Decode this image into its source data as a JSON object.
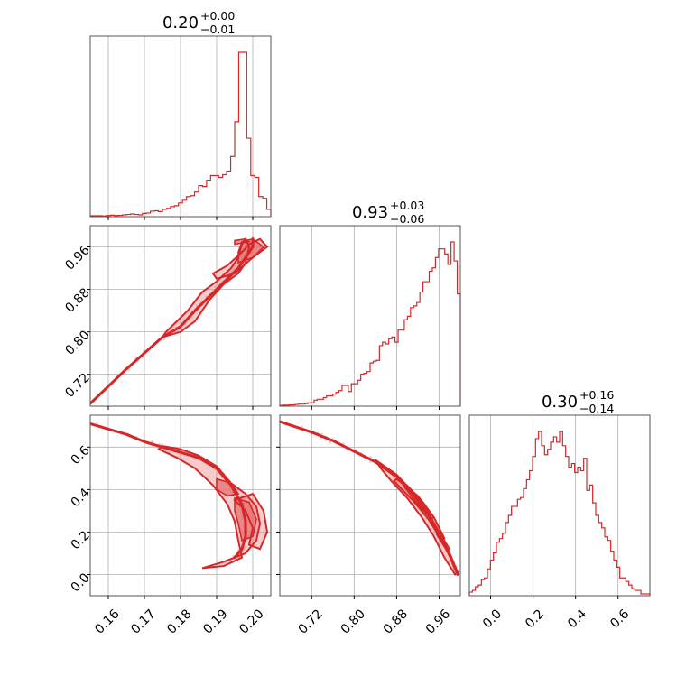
{
  "colors": {
    "series": "#d62728",
    "scatter": "#f2a3a3",
    "fill": "#e66a6b",
    "grid": "#b0b0b0",
    "frame": "#555555"
  },
  "chart_data": {
    "type": "corner",
    "titles": [
      {
        "value": "0.20",
        "plus": "+0.00",
        "minus": "−0.01"
      },
      {
        "value": "0.93",
        "plus": "+0.03",
        "minus": "−0.06"
      },
      {
        "value": "0.30",
        "plus": "+0.16",
        "minus": "−0.14"
      }
    ],
    "params": [
      {
        "range": [
          0.155,
          0.205
        ],
        "ticks": [
          0.16,
          0.17,
          0.18,
          0.19,
          0.2
        ],
        "tick_labels": [
          "0.16",
          "0.17",
          "0.18",
          "0.19",
          "0.20"
        ]
      },
      {
        "range": [
          0.66,
          1.0
        ],
        "ticks": [
          0.72,
          0.8,
          0.88,
          0.96
        ],
        "tick_labels": [
          "0.72",
          "0.80",
          "0.88",
          "0.96"
        ]
      },
      {
        "range": [
          -0.1,
          0.75
        ],
        "ticks": [
          0.0,
          0.2,
          0.4,
          0.6
        ],
        "tick_labels": [
          "0.0",
          "0.2",
          "0.4",
          "0.6"
        ]
      }
    ],
    "grid": true,
    "histograms": [
      {
        "bin_range": [
          0.155,
          0.205
        ],
        "counts": [
          0.005,
          0.005,
          0.005,
          0.004,
          0.006,
          0.008,
          0.006,
          0.007,
          0.01,
          0.012,
          0.015,
          0.012,
          0.01,
          0.018,
          0.02,
          0.03,
          0.032,
          0.028,
          0.04,
          0.045,
          0.055,
          0.06,
          0.075,
          0.09,
          0.11,
          0.115,
          0.135,
          0.17,
          0.165,
          0.2,
          0.225,
          0.225,
          0.215,
          0.23,
          0.25,
          0.33,
          0.52,
          0.9,
          0.9,
          0.43,
          0.225,
          0.215,
          0.11,
          0.1,
          0.04
        ]
      },
      {
        "bin_range": [
          0.66,
          1.0
        ],
        "counts": [
          0.005,
          0.006,
          0.006,
          0.007,
          0.008,
          0.01,
          0.012,
          0.012,
          0.015,
          0.02,
          0.02,
          0.035,
          0.04,
          0.04,
          0.05,
          0.06,
          0.06,
          0.07,
          0.08,
          0.09,
          0.12,
          0.12,
          0.085,
          0.13,
          0.13,
          0.15,
          0.185,
          0.19,
          0.2,
          0.25,
          0.26,
          0.265,
          0.35,
          0.37,
          0.36,
          0.39,
          0.4,
          0.37,
          0.44,
          0.44,
          0.5,
          0.52,
          0.57,
          0.58,
          0.6,
          0.66,
          0.72,
          0.72,
          0.78,
          0.8,
          0.86,
          0.91,
          0.91,
          0.88,
          0.82,
          0.95,
          0.84,
          0.65
        ]
      },
      {
        "bin_range": [
          -0.1,
          0.75
        ],
        "counts": [
          0.02,
          0.03,
          0.05,
          0.06,
          0.09,
          0.1,
          0.15,
          0.2,
          0.24,
          0.3,
          0.32,
          0.35,
          0.41,
          0.45,
          0.5,
          0.5,
          0.54,
          0.55,
          0.6,
          0.65,
          0.7,
          0.78,
          0.88,
          0.92,
          0.84,
          0.79,
          0.82,
          0.86,
          0.89,
          0.86,
          0.92,
          0.84,
          0.78,
          0.72,
          0.74,
          0.69,
          0.72,
          0.7,
          0.77,
          0.59,
          0.62,
          0.52,
          0.45,
          0.41,
          0.38,
          0.33,
          0.31,
          0.25,
          0.2,
          0.16,
          0.1,
          0.1,
          0.08,
          0.06,
          0.04,
          0.03,
          0.03,
          0.01,
          0.01,
          0.01
        ]
      }
    ],
    "pairs": [
      {
        "x_param": 0,
        "y_param": 1,
        "ridge": [
          [
            0.155,
            0.665
          ],
          [
            0.165,
            0.73
          ],
          [
            0.17,
            0.76
          ],
          [
            0.175,
            0.79
          ],
          [
            0.18,
            0.81
          ],
          [
            0.184,
            0.84
          ],
          [
            0.187,
            0.86
          ],
          [
            0.19,
            0.88
          ],
          [
            0.193,
            0.9
          ],
          [
            0.196,
            0.92
          ],
          [
            0.198,
            0.94
          ],
          [
            0.2,
            0.96
          ],
          [
            0.2,
            0.975
          ]
        ],
        "outer_contours": [
          [
            [
              0.175,
              0.79
            ],
            [
              0.18,
              0.8
            ],
            [
              0.184,
              0.82
            ],
            [
              0.188,
              0.86
            ],
            [
              0.192,
              0.89
            ],
            [
              0.196,
              0.91
            ],
            [
              0.198,
              0.93
            ],
            [
              0.199,
              0.96
            ],
            [
              0.198,
              0.975
            ],
            [
              0.197,
              0.965
            ],
            [
              0.196,
              0.94
            ],
            [
              0.194,
              0.92
            ],
            [
              0.19,
              0.895
            ],
            [
              0.186,
              0.875
            ],
            [
              0.182,
              0.84
            ],
            [
              0.179,
              0.82
            ],
            [
              0.176,
              0.8
            ]
          ],
          [
            [
              0.19,
              0.9
            ],
            [
              0.195,
              0.91
            ],
            [
              0.2,
              0.94
            ],
            [
              0.204,
              0.96
            ],
            [
              0.202,
              0.975
            ],
            [
              0.199,
              0.965
            ],
            [
              0.197,
              0.95
            ],
            [
              0.193,
              0.925
            ],
            [
              0.189,
              0.91
            ]
          ]
        ],
        "inner_contours": [
          [
            [
              0.196,
              0.93
            ],
            [
              0.2,
              0.94
            ],
            [
              0.203,
              0.96
            ],
            [
              0.2,
              0.975
            ],
            [
              0.197,
              0.97
            ],
            [
              0.196,
              0.95
            ]
          ],
          [
            [
              0.195,
              0.965
            ],
            [
              0.199,
              0.97
            ],
            [
              0.198,
              0.975
            ],
            [
              0.195,
              0.972
            ]
          ]
        ]
      },
      {
        "x_param": 0,
        "y_param": 2,
        "ridge": [
          [
            0.155,
            0.71
          ],
          [
            0.165,
            0.66
          ],
          [
            0.17,
            0.625
          ],
          [
            0.175,
            0.6
          ],
          [
            0.18,
            0.575
          ],
          [
            0.185,
            0.55
          ],
          [
            0.19,
            0.5
          ],
          [
            0.194,
            0.42
          ],
          [
            0.197,
            0.33
          ],
          [
            0.198,
            0.25
          ],
          [
            0.198,
            0.18
          ],
          [
            0.197,
            0.12
          ],
          [
            0.195,
            0.08
          ]
        ],
        "outer_contours": [
          [
            [
              0.175,
              0.605
            ],
            [
              0.18,
              0.59
            ],
            [
              0.185,
              0.56
            ],
            [
              0.19,
              0.51
            ],
            [
              0.194,
              0.43
            ],
            [
              0.198,
              0.38
            ],
            [
              0.201,
              0.32
            ],
            [
              0.202,
              0.24
            ],
            [
              0.201,
              0.16
            ],
            [
              0.198,
              0.1
            ],
            [
              0.192,
              0.06
            ],
            [
              0.186,
              0.03
            ],
            [
              0.192,
              0.04
            ],
            [
              0.197,
              0.08
            ],
            [
              0.196,
              0.16
            ],
            [
              0.195,
              0.25
            ],
            [
              0.193,
              0.33
            ],
            [
              0.189,
              0.42
            ],
            [
              0.184,
              0.5
            ],
            [
              0.179,
              0.55
            ],
            [
              0.174,
              0.59
            ]
          ],
          [
            [
              0.195,
              0.35
            ],
            [
              0.2,
              0.38
            ],
            [
              0.203,
              0.3
            ],
            [
              0.204,
              0.2
            ],
            [
              0.202,
              0.12
            ],
            [
              0.199,
              0.14
            ],
            [
              0.2,
              0.22
            ],
            [
              0.198,
              0.3
            ]
          ]
        ],
        "inner_contours": [
          [
            [
              0.195,
              0.36
            ],
            [
              0.199,
              0.34
            ],
            [
              0.201,
              0.26
            ],
            [
              0.2,
              0.18
            ],
            [
              0.197,
              0.16
            ],
            [
              0.196,
              0.24
            ],
            [
              0.195,
              0.3
            ]
          ],
          [
            [
              0.19,
              0.45
            ],
            [
              0.194,
              0.43
            ],
            [
              0.196,
              0.38
            ],
            [
              0.193,
              0.37
            ],
            [
              0.19,
              0.4
            ]
          ]
        ]
      },
      {
        "x_param": 1,
        "y_param": 2,
        "ridge": [
          [
            0.66,
            0.72
          ],
          [
            0.72,
            0.67
          ],
          [
            0.76,
            0.63
          ],
          [
            0.8,
            0.58
          ],
          [
            0.84,
            0.53
          ],
          [
            0.88,
            0.46
          ],
          [
            0.91,
            0.38
          ],
          [
            0.94,
            0.28
          ],
          [
            0.96,
            0.19
          ],
          [
            0.98,
            0.09
          ],
          [
            0.995,
            0.0
          ]
        ],
        "outer_contours": [
          [
            [
              0.84,
              0.54
            ],
            [
              0.88,
              0.47
            ],
            [
              0.91,
              0.39
            ],
            [
              0.94,
              0.29
            ],
            [
              0.96,
              0.2
            ],
            [
              0.98,
              0.1
            ],
            [
              0.995,
              0.01
            ],
            [
              0.99,
              0.0
            ],
            [
              0.97,
              0.08
            ],
            [
              0.95,
              0.18
            ],
            [
              0.93,
              0.26
            ],
            [
              0.9,
              0.36
            ],
            [
              0.87,
              0.44
            ],
            [
              0.85,
              0.5
            ]
          ],
          [
            [
              0.88,
              0.45
            ],
            [
              0.92,
              0.37
            ],
            [
              0.95,
              0.27
            ],
            [
              0.97,
              0.17
            ],
            [
              0.965,
              0.16
            ],
            [
              0.94,
              0.26
            ],
            [
              0.91,
              0.35
            ],
            [
              0.875,
              0.44
            ]
          ]
        ],
        "inner_contours": [
          [
            [
              0.9,
              0.42
            ],
            [
              0.93,
              0.34
            ],
            [
              0.95,
              0.27
            ],
            [
              0.945,
              0.26
            ],
            [
              0.92,
              0.33
            ],
            [
              0.895,
              0.41
            ]
          ],
          [
            [
              0.96,
              0.2
            ],
            [
              0.98,
              0.12
            ],
            [
              0.975,
              0.11
            ],
            [
              0.955,
              0.19
            ]
          ]
        ]
      }
    ]
  }
}
